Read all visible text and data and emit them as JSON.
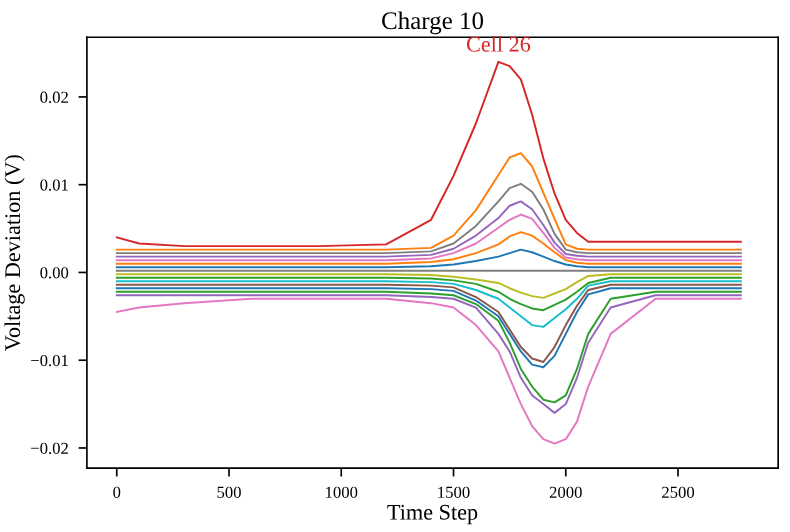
{
  "chart_data": {
    "type": "line",
    "title": "Charge 10",
    "xlabel": "Time Step",
    "ylabel": "Voltage Deviation (V)",
    "annotations": [
      {
        "text": "Cell 26",
        "x": 1700,
        "y": 0.024
      }
    ],
    "x": [
      0,
      100,
      300,
      600,
      900,
      1200,
      1400,
      1500,
      1600,
      1700,
      1750,
      1800,
      1850,
      1900,
      1950,
      2000,
      2050,
      2100,
      2200,
      2400,
      2600,
      2780
    ],
    "xlim": [
      -133,
      2946
    ],
    "ylim": [
      -0.0223,
      0.0268
    ],
    "xticks": [
      0,
      500,
      1000,
      1500,
      2000,
      2500
    ],
    "yticks": [
      {
        "value": -0.02,
        "label": "−0.02"
      },
      {
        "value": -0.01,
        "label": "−0.01"
      },
      {
        "value": 0,
        "label": "0.00"
      },
      {
        "value": 0.01,
        "label": "0.01"
      },
      {
        "value": 0.02,
        "label": "0.02"
      }
    ],
    "grid": false,
    "legend": false,
    "marker": "none",
    "line_style": "solid",
    "series": [
      {
        "color": "#e377c2",
        "values": [
          -0.0045,
          -0.004,
          -0.0035,
          -0.003,
          -0.003,
          -0.003,
          -0.0035,
          -0.004,
          -0.006,
          -0.009,
          -0.012,
          -0.015,
          -0.0175,
          -0.019,
          -0.0195,
          -0.019,
          -0.017,
          -0.013,
          -0.007,
          -0.003,
          -0.003,
          -0.003
        ]
      },
      {
        "color": "#9467bd",
        "values": [
          -0.0026,
          -0.0026,
          -0.0026,
          -0.0026,
          -0.0026,
          -0.0026,
          -0.0028,
          -0.003,
          -0.004,
          -0.007,
          -0.009,
          -0.012,
          -0.014,
          -0.015,
          -0.016,
          -0.015,
          -0.012,
          -0.008,
          -0.004,
          -0.0026,
          -0.0026,
          -0.0026
        ]
      },
      {
        "color": "#2ca02c",
        "values": [
          -0.0022,
          -0.0022,
          -0.0022,
          -0.0022,
          -0.0022,
          -0.0022,
          -0.0024,
          -0.0026,
          -0.0036,
          -0.0055,
          -0.008,
          -0.011,
          -0.013,
          -0.0145,
          -0.0148,
          -0.014,
          -0.011,
          -0.007,
          -0.003,
          -0.0022,
          -0.0022,
          -0.0022
        ]
      },
      {
        "color": "#1f77b4",
        "values": [
          -0.0018,
          -0.0018,
          -0.0018,
          -0.0018,
          -0.0018,
          -0.0018,
          -0.0019,
          -0.0021,
          -0.0032,
          -0.005,
          -0.007,
          -0.009,
          -0.0105,
          -0.0108,
          -0.0095,
          -0.007,
          -0.0045,
          -0.0025,
          -0.0018,
          -0.0018,
          -0.0018,
          -0.0018
        ]
      },
      {
        "color": "#8c564b",
        "values": [
          -0.0014,
          -0.0014,
          -0.0014,
          -0.0014,
          -0.0014,
          -0.0014,
          -0.0015,
          -0.0017,
          -0.0028,
          -0.0045,
          -0.0065,
          -0.0085,
          -0.0098,
          -0.0102,
          -0.0085,
          -0.006,
          -0.0038,
          -0.002,
          -0.0014,
          -0.0014,
          -0.0014,
          -0.0014
        ]
      },
      {
        "color": "#17becf",
        "values": [
          -0.001,
          -0.001,
          -0.001,
          -0.001,
          -0.001,
          -0.001,
          -0.0011,
          -0.0013,
          -0.002,
          -0.003,
          -0.004,
          -0.005,
          -0.006,
          -0.0062,
          -0.0052,
          -0.0042,
          -0.003,
          -0.0015,
          -0.001,
          -0.001,
          -0.001,
          -0.001
        ]
      },
      {
        "color": "#2ca02c",
        "values": [
          -0.0006,
          -0.0006,
          -0.0006,
          -0.0006,
          -0.0006,
          -0.0006,
          -0.0007,
          -0.0009,
          -0.0013,
          -0.0022,
          -0.003,
          -0.0036,
          -0.0041,
          -0.0043,
          -0.0037,
          -0.0031,
          -0.0022,
          -0.0012,
          -0.0006,
          -0.0006,
          -0.0006,
          -0.0006
        ]
      },
      {
        "color": "#bcbd22",
        "values": [
          -0.0002,
          -0.0002,
          -0.0002,
          -0.0002,
          -0.0002,
          -0.0002,
          -0.0003,
          -0.0005,
          -0.0008,
          -0.0012,
          -0.0018,
          -0.0023,
          -0.0027,
          -0.0029,
          -0.0024,
          -0.0019,
          -0.0011,
          -0.0004,
          -0.0002,
          -0.0002,
          -0.0002,
          -0.0002
        ]
      },
      {
        "color": "#7f7f7f",
        "values": [
          0.0002,
          0.0002,
          0.0002,
          0.0002,
          0.0002,
          0.0002,
          0.0002,
          0.0002,
          0.0002,
          0.0002,
          0.0002,
          0.0002,
          0.0002,
          0.0002,
          0.0002,
          0.0002,
          0.0002,
          0.0002,
          0.0002,
          0.0002,
          0.0002,
          0.0002
        ]
      },
      {
        "color": "#1f77b4",
        "values": [
          0.0006,
          0.0006,
          0.0006,
          0.0006,
          0.0006,
          0.0006,
          0.0007,
          0.0009,
          0.0013,
          0.0018,
          0.0022,
          0.0026,
          0.0023,
          0.0018,
          0.0013,
          0.0009,
          0.0007,
          0.0006,
          0.0006,
          0.0006,
          0.0006,
          0.0006
        ]
      },
      {
        "color": "#ff7f0e",
        "values": [
          0.001,
          0.001,
          0.001,
          0.001,
          0.001,
          0.001,
          0.0012,
          0.0015,
          0.0022,
          0.0032,
          0.0041,
          0.0046,
          0.0042,
          0.0033,
          0.0023,
          0.0014,
          0.0011,
          0.001,
          0.001,
          0.001,
          0.001,
          0.001
        ]
      },
      {
        "color": "#e377c2",
        "values": [
          0.0014,
          0.0014,
          0.0014,
          0.0014,
          0.0014,
          0.0014,
          0.0016,
          0.0022,
          0.0033,
          0.0051,
          0.006,
          0.0066,
          0.0061,
          0.0045,
          0.0028,
          0.0017,
          0.0015,
          0.0014,
          0.0014,
          0.0014,
          0.0014,
          0.0014
        ]
      },
      {
        "color": "#9467bd",
        "values": [
          0.0018,
          0.0018,
          0.0018,
          0.0018,
          0.0018,
          0.0018,
          0.002,
          0.0027,
          0.0042,
          0.0062,
          0.0076,
          0.0081,
          0.0072,
          0.0054,
          0.0034,
          0.0021,
          0.0019,
          0.0018,
          0.0018,
          0.0018,
          0.0018,
          0.0018
        ]
      },
      {
        "color": "#7f7f7f",
        "values": [
          0.0022,
          0.0022,
          0.0022,
          0.0022,
          0.0022,
          0.0022,
          0.0024,
          0.0033,
          0.0053,
          0.0081,
          0.0096,
          0.0101,
          0.0092,
          0.0072,
          0.0044,
          0.0026,
          0.0023,
          0.0022,
          0.0022,
          0.0022,
          0.0022,
          0.0022
        ]
      },
      {
        "color": "#ff7f0e",
        "values": [
          0.0026,
          0.0026,
          0.0026,
          0.0026,
          0.0026,
          0.0026,
          0.0028,
          0.0042,
          0.0071,
          0.0111,
          0.0131,
          0.0136,
          0.0121,
          0.0091,
          0.0061,
          0.0032,
          0.0027,
          0.0026,
          0.0026,
          0.0026,
          0.0026,
          0.0026
        ]
      },
      {
        "color": "#d62728",
        "values": [
          0.004,
          0.0033,
          0.003,
          0.003,
          0.003,
          0.0032,
          0.006,
          0.011,
          0.017,
          0.024,
          0.0235,
          0.022,
          0.018,
          0.013,
          0.009,
          0.006,
          0.0045,
          0.0035,
          0.0035,
          0.0035,
          0.0035,
          0.0035
        ]
      }
    ]
  }
}
